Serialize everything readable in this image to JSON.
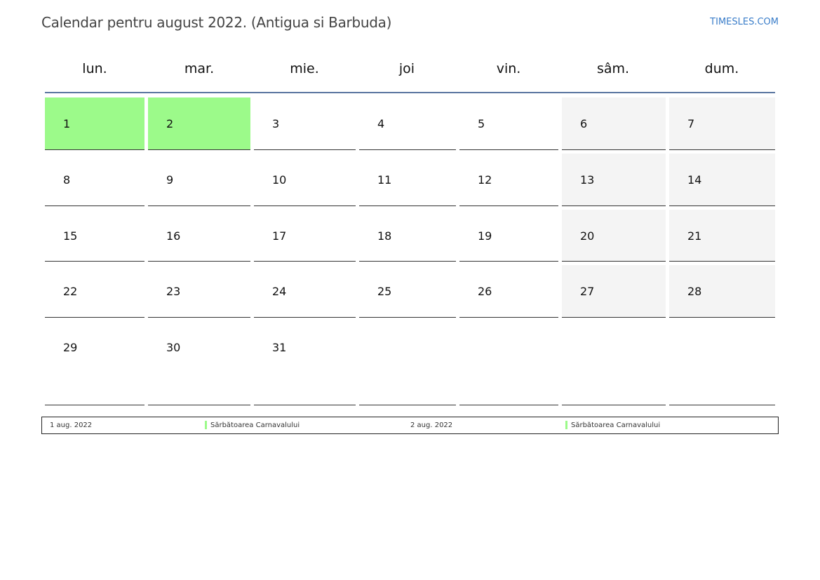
{
  "header": {
    "title": "Calendar pentru august 2022. (Antigua si Barbuda)",
    "brand": "TIMESLES.COM"
  },
  "weekdays": [
    "lun.",
    "mar.",
    "mie.",
    "joi",
    "vin.",
    "sâm.",
    "dum."
  ],
  "weeks": [
    [
      "1",
      "2",
      "3",
      "4",
      "5",
      "6",
      "7"
    ],
    [
      "8",
      "9",
      "10",
      "11",
      "12",
      "13",
      "14"
    ],
    [
      "15",
      "16",
      "17",
      "18",
      "19",
      "20",
      "21"
    ],
    [
      "22",
      "23",
      "24",
      "25",
      "26",
      "27",
      "28"
    ],
    [
      "29",
      "30",
      "31",
      "",
      "",
      "",
      ""
    ]
  ],
  "holiday_days": [
    "1",
    "2"
  ],
  "colors": {
    "holiday": "#9cfa8a",
    "weekend": "#f4f4f4",
    "rule": "#5a76a0"
  },
  "legend": [
    {
      "date": "1 aug. 2022",
      "name": "Sărbătoarea Carnavalului"
    },
    {
      "date": "2 aug. 2022",
      "name": "Sărbătoarea Carnavalului"
    }
  ]
}
